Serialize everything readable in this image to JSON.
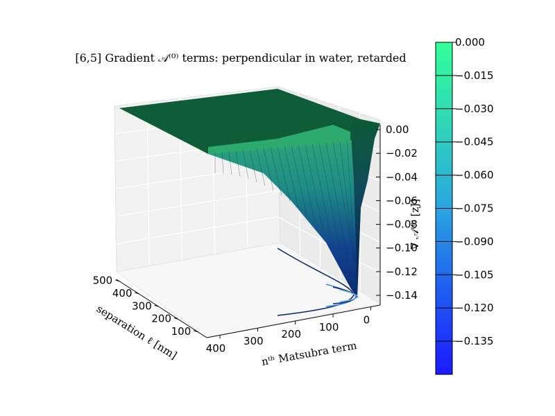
{
  "chart_data": {
    "type": "surface3d",
    "title": "[6,5] Gradient 𝒜⁽⁰⁾ terms: perpendicular in water, retarded",
    "x_axis": {
      "label": "separation  ℓ [nm]",
      "ticks": [
        "500",
        "400",
        "300",
        "200",
        "100"
      ]
    },
    "y_axis": {
      "label": "nᵗʰ  Matsubra term",
      "ticks": [
        "400",
        "300",
        "200",
        "100",
        "0"
      ]
    },
    "z_axis": {
      "label": "∇ 𝒜⁽⁰⁾ [zJ]",
      "ticks": [
        "0.00",
        "−0.02",
        "−0.04",
        "−0.06",
        "−0.08",
        "−0.10",
        "−0.12",
        "−0.14"
      ],
      "zlim": [
        -0.15,
        0.0
      ]
    },
    "colorbar": {
      "ticks": [
        "0.000",
        "−0.015",
        "−0.030",
        "−0.045",
        "−0.060",
        "−0.075",
        "−0.090",
        "−0.105",
        "−0.120",
        "−0.135"
      ],
      "range": [
        -0.15,
        0.0
      ],
      "colormap": [
        "#1a1aff",
        "#1f5cf0",
        "#2aa5e0",
        "#30d5b8",
        "#33ff99"
      ]
    },
    "surface": {
      "description_values": "gradient approaches minimum near n=0, small separation",
      "min_value": -0.14,
      "max_value": 0.0
    },
    "colors": {
      "surface_top": "#0e5c38",
      "surface_mid": "#1f9a78",
      "surface_low": "#0e3a8a",
      "contour": "#0a2a6a"
    }
  }
}
